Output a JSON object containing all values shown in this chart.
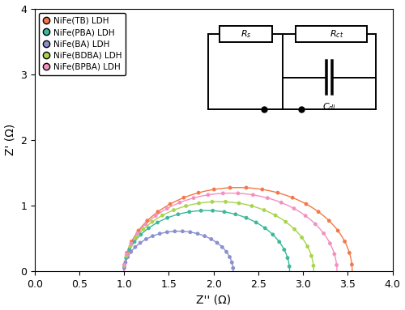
{
  "series": [
    {
      "label": "NiFe(TB) LDH",
      "color": "#F4784A",
      "Rs": 1.0,
      "Rct": 2.55,
      "line_color": "#F4784A"
    },
    {
      "label": "NiFe(PBA) LDH",
      "color": "#3DB89A",
      "Rs": 1.0,
      "Rct": 1.85,
      "line_color": "#3DB89A"
    },
    {
      "label": "NiFe(BA) LDH",
      "color": "#8B8FD0",
      "Rs": 1.0,
      "Rct": 1.22,
      "line_color": "#8B8FD0"
    },
    {
      "label": "NiFe(BDBA) LDH",
      "color": "#A8D44E",
      "Rs": 1.0,
      "Rct": 2.12,
      "line_color": "#A8D44E"
    },
    {
      "label": "NiFe(BPBA) LDH",
      "color": "#F490C0",
      "Rs": 1.0,
      "Rct": 2.38,
      "line_color": "#F490C0"
    }
  ],
  "xlabel": "Z'' (Ω)",
  "ylabel": "Z' (Ω)",
  "xlim": [
    0.0,
    4.0
  ],
  "ylim": [
    0.0,
    4.0
  ],
  "xticks": [
    0.0,
    0.5,
    1.0,
    1.5,
    2.0,
    2.5,
    3.0,
    3.5,
    4.0
  ],
  "yticks": [
    0.0,
    1.0,
    2.0,
    3.0,
    4.0
  ],
  "n_dots": 22,
  "dot_size": 12,
  "background_color": "#ffffff"
}
